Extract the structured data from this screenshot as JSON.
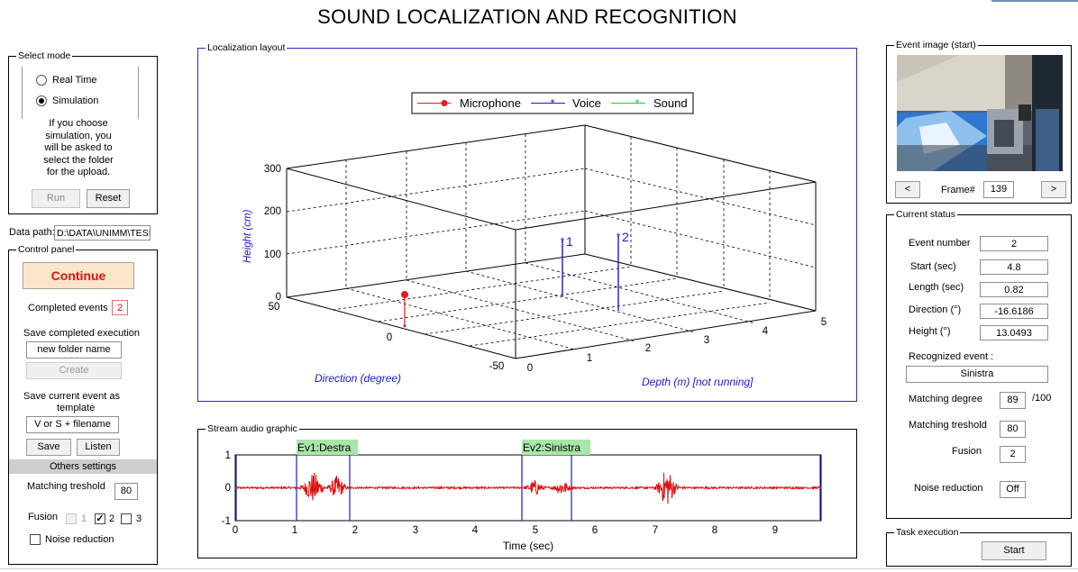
{
  "title": "SOUND LOCALIZATION AND RECOGNITION",
  "select_mode": {
    "legend": "Select mode",
    "options": [
      "Real Time",
      "Simulation"
    ],
    "selected": "Simulation",
    "info_lines": [
      "If you choose",
      "simulation, you",
      "will be asked to",
      "select the folder",
      "for the upload."
    ],
    "run_label": "Run",
    "reset_label": "Reset"
  },
  "data_path": {
    "label": "Data path:",
    "value": "D:\\DATA\\UNIMM\\TESI\\"
  },
  "control_panel": {
    "legend": "Control panel",
    "continue_label": "Continue",
    "completed_events_label": "Completed events",
    "completed_events_value": "2",
    "save_execution_label": "Save completed execution",
    "folder_name_value": "new folder name",
    "create_label": "Create",
    "save_template_label_line1": "Save current event as",
    "save_template_label_line2": "template",
    "template_value": "V or S + filename",
    "save_label": "Save",
    "listen_label": "Listen",
    "others_settings_label": "Others settings",
    "matching_treshold_label": "Matching treshold",
    "matching_treshold_value": "80",
    "fusion_label": "Fusion",
    "fusion_options": [
      "1",
      "2",
      "3"
    ],
    "fusion_checked": [
      false,
      true,
      false
    ],
    "noise_reduction_label": "Noise reduction"
  },
  "localization": {
    "legend": "Localization layout",
    "legend_items": [
      "Microphone",
      "Voice",
      "Sound"
    ],
    "height_label": "Height (cm)",
    "direction_label": "Direction (degree)",
    "depth_label": "Depth (m) [not running]",
    "height_ticks": [
      "300",
      "200",
      "100",
      "0"
    ],
    "direction_ticks": [
      "50",
      "0",
      "-50"
    ],
    "depth_ticks": [
      "0",
      "1",
      "2",
      "3",
      "4",
      "5"
    ],
    "points": [
      "1",
      "2"
    ]
  },
  "stream": {
    "legend": "Stream audio graphic",
    "events": [
      "Ev1:Destra",
      "Ev2:Sinistra"
    ],
    "xlabel": "Time (sec)",
    "x_ticks": [
      "0",
      "1",
      "2",
      "3",
      "4",
      "5",
      "6",
      "7",
      "8",
      "9"
    ],
    "y_ticks": [
      "1",
      "0",
      "-1"
    ]
  },
  "event_image": {
    "legend": "Event image (start)",
    "prev_label": "<",
    "next_label": ">",
    "frame_label": "Frame#",
    "frame_value": "139"
  },
  "current_status": {
    "legend": "Current status",
    "event_number_label": "Event number",
    "event_number_value": "2",
    "start_label": "Start (sec)",
    "start_value": "4.8",
    "length_label": "Length (sec)",
    "length_value": "0.82",
    "direction_label": "Direction (°)",
    "direction_value": "-16.6186",
    "height_label": "Height (°)",
    "height_value": "13.0493",
    "recognized_label": "Recognized event :",
    "recognized_value": "Sinistra",
    "matching_degree_label": "Matching degree",
    "matching_degree_value": "89",
    "matching_degree_suffix": "/100",
    "matching_treshold_label": "Matching treshold",
    "matching_treshold_value": "80",
    "fusion_label": "Fusion",
    "fusion_value": "2",
    "noise_reduction_label": "Noise reduction",
    "noise_reduction_value": "Off"
  },
  "task_execution": {
    "legend": "Task execution",
    "start_label": "Start"
  },
  "colors": {
    "microphone": "#e81b1b",
    "voice": "#1a1acc",
    "sound": "#22cc22",
    "signal": "#e01010",
    "event_tag": "#a9e6a9",
    "continue_bg": "#fde5cc",
    "continue_text": "#e01010"
  }
}
